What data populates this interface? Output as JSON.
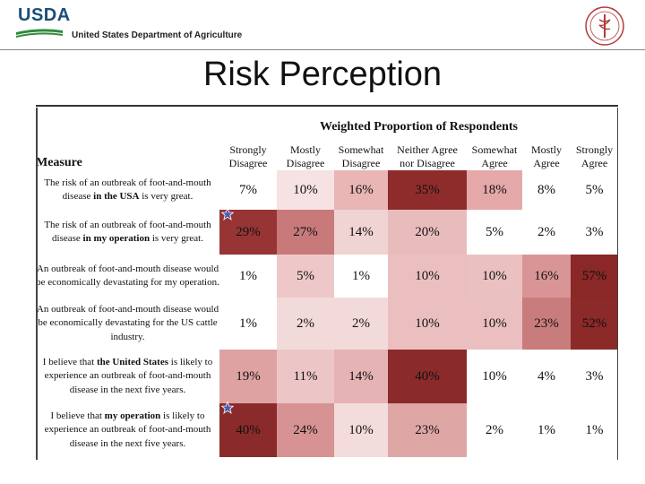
{
  "header": {
    "logo_text": "USDA",
    "department": "United States Department of Agriculture",
    "logo_color": "#1b4e78",
    "swoosh_color": "#2f8a3c"
  },
  "title": "Risk Perception",
  "table": {
    "group_header": "Weighted Proportion of Respondents",
    "measure_header": "Measure",
    "columns": [
      {
        "line1": "Strongly",
        "line2": "Disagree"
      },
      {
        "line1": "Mostly",
        "line2": "Disagree"
      },
      {
        "line1": "Somewhat",
        "line2": "Disagree"
      },
      {
        "line1": "Neither Agree",
        "line2": "nor Disagree"
      },
      {
        "line1": "Somewhat",
        "line2": "Agree"
      },
      {
        "line1": "Mostly",
        "line2": "Agree"
      },
      {
        "line1": "Strongly",
        "line2": "Agree"
      }
    ],
    "rows": [
      {
        "pre": "The risk of an outbreak of foot-and-mouth disease ",
        "bold": "in the USA",
        "post": " is very great.",
        "starred": false,
        "values": [
          "7%",
          "10%",
          "16%",
          "35%",
          "18%",
          "8%",
          "5%"
        ],
        "colors": [
          "#ffffff",
          "#f6e2e2",
          "#e9b5b5",
          "#8e2c2c",
          "#e5a8a8",
          "#ffffff",
          "#ffffff"
        ]
      },
      {
        "pre": "The risk of an outbreak of foot-and-mouth disease ",
        "bold": "in my operation",
        "post": " is very great.",
        "starred": true,
        "values": [
          "29%",
          "27%",
          "14%",
          "20%",
          "5%",
          "2%",
          "3%"
        ],
        "colors": [
          "#973434",
          "#c87a7a",
          "#f0d3d3",
          "#e9bcbc",
          "#ffffff",
          "#ffffff",
          "#ffffff"
        ]
      },
      {
        "pre": "An outbreak of foot-and-mouth disease would be economically devastating for my operation.",
        "bold": "",
        "post": "",
        "starred": false,
        "values": [
          "1%",
          "5%",
          "1%",
          "10%",
          "10%",
          "16%",
          "57%"
        ],
        "colors": [
          "#ffffff",
          "#eec8c8",
          "#ffffff",
          "#ebbfbf",
          "#eac0c0",
          "#d99595",
          "#8a2727"
        ]
      },
      {
        "pre": "An outbreak of foot-and-mouth disease would be economically devastating for the US cattle industry.",
        "bold": "",
        "post": "",
        "starred": false,
        "values": [
          "1%",
          "2%",
          "2%",
          "10%",
          "10%",
          "23%",
          "52%"
        ],
        "colors": [
          "#ffffff",
          "#f3dada",
          "#f3dada",
          "#ebbfbf",
          "#ebbfbf",
          "#c97c7c",
          "#8c2929"
        ]
      },
      {
        "pre": "I believe that ",
        "bold": "the United States",
        "post": " is likely to experience an outbreak of foot-and-mouth disease in the next five years.",
        "starred": false,
        "values": [
          "19%",
          "11%",
          "14%",
          "40%",
          "10%",
          "4%",
          "3%"
        ],
        "colors": [
          "#dfa2a2",
          "#ecc6c6",
          "#e5b3b3",
          "#8b2a2a",
          "#ffffff",
          "#ffffff",
          "#ffffff"
        ]
      },
      {
        "pre": "I believe that ",
        "bold": "my operation",
        "post": " is likely to experience an outbreak of foot-and-mouth disease in the next five years.",
        "starred": true,
        "values": [
          "40%",
          "24%",
          "10%",
          "23%",
          "2%",
          "1%",
          "1%"
        ],
        "colors": [
          "#8b2a2a",
          "#d79393",
          "#f4dcdc",
          "#dfa6a6",
          "#ffffff",
          "#ffffff",
          "#ffffff"
        ]
      }
    ]
  },
  "star_color": "#4a5fb5"
}
